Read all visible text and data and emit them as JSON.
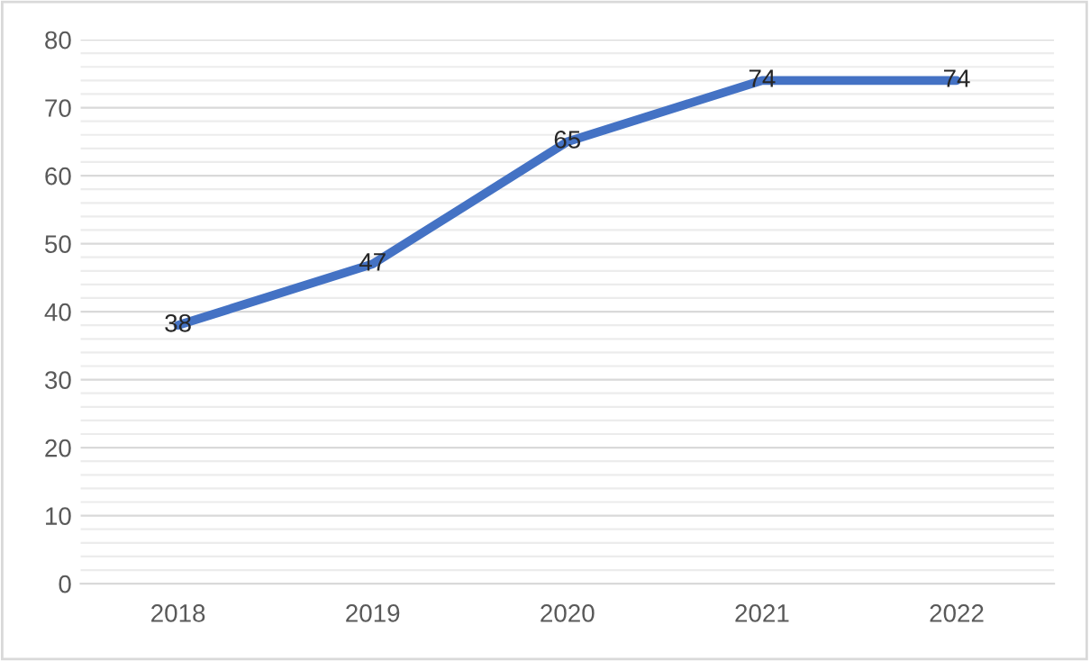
{
  "chart_data": {
    "type": "line",
    "categories": [
      "2018",
      "2019",
      "2020",
      "2021",
      "2022"
    ],
    "series": [
      {
        "color": "#4472c4",
        "values": [
          38,
          47,
          65,
          74,
          74
        ]
      }
    ],
    "ylim": [
      0,
      80
    ],
    "yticks": [
      0,
      {
        "value": 2,
        "label": null
      },
      {
        "value": 4,
        "label": null
      },
      {
        "value": 6,
        "label": null
      },
      {
        "value": 8,
        "label": null
      },
      10,
      {
        "value": 12,
        "label": null
      },
      {
        "value": 14,
        "label": null
      },
      {
        "value": 16,
        "label": null
      },
      {
        "value": 18,
        "label": null
      },
      20,
      {
        "value": 22,
        "label": null
      },
      {
        "value": 24,
        "label": null
      },
      {
        "value": 26,
        "label": null
      },
      {
        "value": 28,
        "label": null
      },
      30,
      {
        "value": 32,
        "label": null
      },
      {
        "value": 34,
        "label": null
      },
      {
        "value": 36,
        "label": null
      },
      {
        "value": 38,
        "label": null
      },
      40,
      {
        "value": 42,
        "label": null
      },
      {
        "value": 44,
        "label": null
      },
      {
        "value": 46,
        "label": null
      },
      {
        "value": 48,
        "label": null
      },
      50,
      {
        "value": 52,
        "label": null
      },
      {
        "value": 54,
        "label": null
      },
      {
        "value": 56,
        "label": null
      },
      {
        "value": 58,
        "label": null
      },
      60,
      {
        "value": 62,
        "label": null
      },
      {
        "value": 64,
        "label": null
      },
      {
        "value": 66,
        "label": null
      },
      {
        "value": 68,
        "label": null
      },
      70,
      {
        "value": 72,
        "label": null
      },
      {
        "value": 74,
        "label": null
      },
      {
        "value": 76,
        "label": null
      },
      {
        "value": 78,
        "label": null
      },
      80
    ],
    "grid": "y",
    "data_labels": true,
    "marker": "none",
    "line_style": "solid"
  }
}
